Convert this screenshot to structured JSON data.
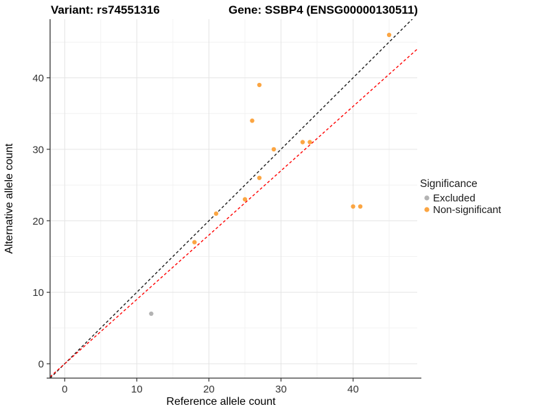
{
  "header": {
    "variant_title": "Variant: rs74551316",
    "gene_title": "Gene: SSBP4 (ENSG00000130511)"
  },
  "chart_data": {
    "type": "scatter",
    "xlabel": "Reference allele count",
    "ylabel": "Alternative allele count",
    "xlim": [
      -2.03,
      48.9
    ],
    "ylim": [
      -2.01,
      48.2
    ],
    "x_ticks": [
      0,
      10,
      20,
      30,
      40
    ],
    "y_ticks": [
      0,
      10,
      20,
      30,
      40
    ],
    "x_minor_ticks": [
      5,
      15,
      25,
      35,
      45
    ],
    "y_minor_ticks": [
      5,
      15,
      25,
      35,
      45
    ],
    "grid": true,
    "legend": {
      "title": "Significance",
      "position": "right",
      "entries": [
        {
          "label": "Excluded",
          "color": "#b3b3b3"
        },
        {
          "label": "Non-significant",
          "color": "#fba542"
        }
      ]
    },
    "series": [
      {
        "name": "Excluded",
        "color": "#b3b3b3",
        "points": [
          [
            12,
            7
          ]
        ]
      },
      {
        "name": "Non-significant",
        "color": "#fba542",
        "points": [
          [
            18,
            17
          ],
          [
            21,
            21
          ],
          [
            25,
            23
          ],
          [
            26,
            34
          ],
          [
            27,
            26
          ],
          [
            27,
            39
          ],
          [
            29,
            30
          ],
          [
            33,
            31
          ],
          [
            34,
            31
          ],
          [
            40,
            22
          ],
          [
            41,
            22
          ],
          [
            45,
            46
          ]
        ]
      }
    ],
    "lines": [
      {
        "name": "identity-line",
        "color": "#1a1a1a",
        "dashed": true,
        "slope": 1.0,
        "intercept": 0
      },
      {
        "name": "ratio-line",
        "color": "#ff0000",
        "dashed": true,
        "slope": 0.9,
        "intercept": 0
      }
    ]
  }
}
